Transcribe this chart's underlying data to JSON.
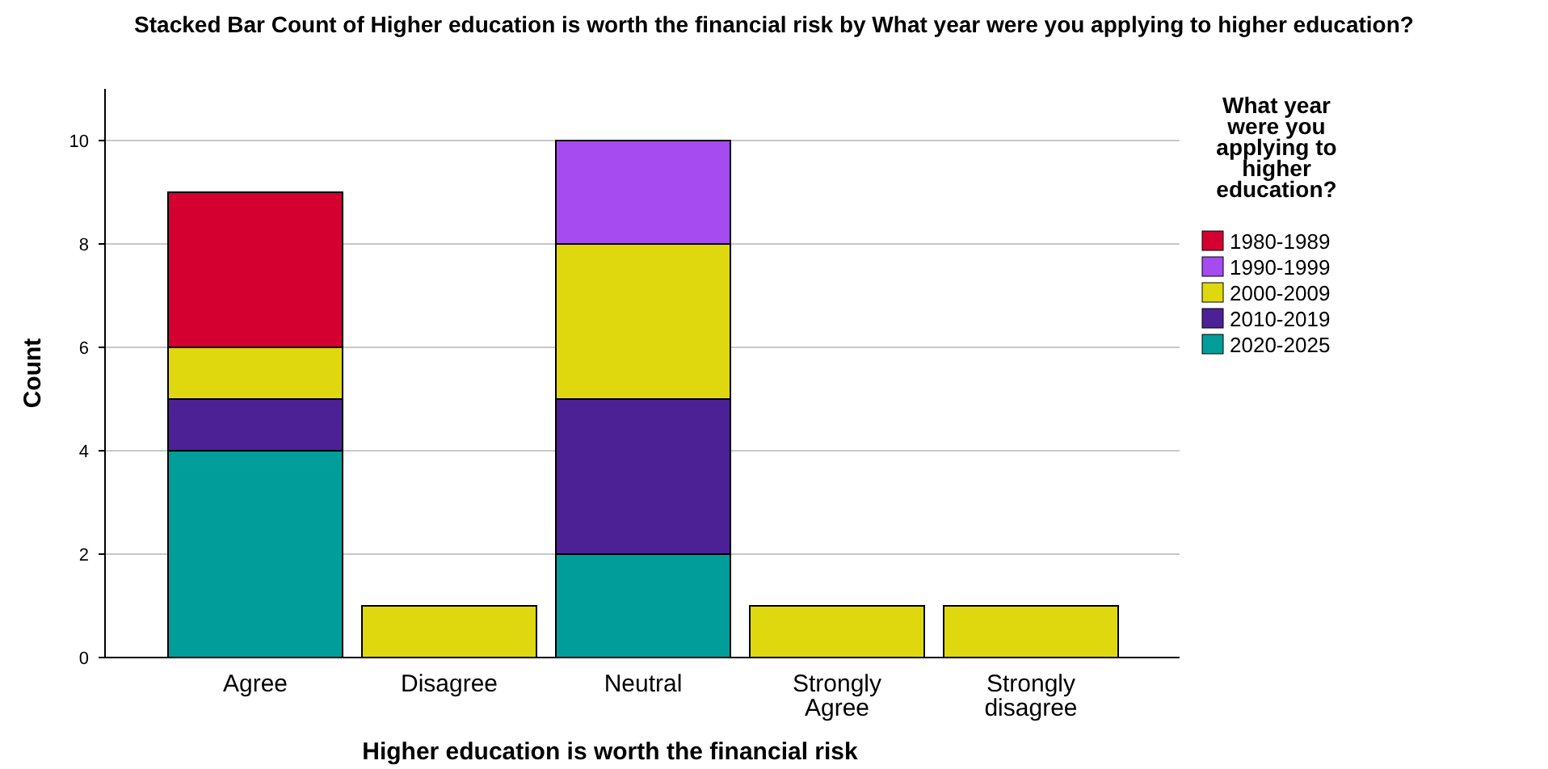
{
  "chart_data": {
    "type": "bar",
    "stacked": true,
    "title": "Stacked Bar Count of Higher education is worth the financial risk by What year were you applying to higher education?",
    "xlabel": "Higher education is worth the financial risk",
    "ylabel": "Count",
    "legend_title": "What year were you applying to higher education?",
    "categories": [
      "Agree",
      "Disagree",
      "Neutral",
      "Strongly Agree",
      "Strongly disagree"
    ],
    "series": [
      {
        "name": "2020-2025",
        "color": "#009d9a",
        "values": [
          4,
          0,
          2,
          0,
          0
        ]
      },
      {
        "name": "2010-2019",
        "color": "#4c2196",
        "values": [
          1,
          0,
          3,
          0,
          0
        ]
      },
      {
        "name": "2000-2009",
        "color": "#e0d80f",
        "values": [
          1,
          1,
          3,
          1,
          1
        ]
      },
      {
        "name": "1990-1999",
        "color": "#a64bf0",
        "values": [
          0,
          0,
          2,
          0,
          0
        ]
      },
      {
        "name": "1980-1989",
        "color": "#d4002f",
        "values": [
          3,
          0,
          0,
          0,
          0
        ]
      }
    ],
    "ylim": [
      0,
      11
    ],
    "yticks": [
      0,
      2,
      4,
      6,
      8,
      10
    ],
    "grid": "y",
    "legend": "right"
  }
}
